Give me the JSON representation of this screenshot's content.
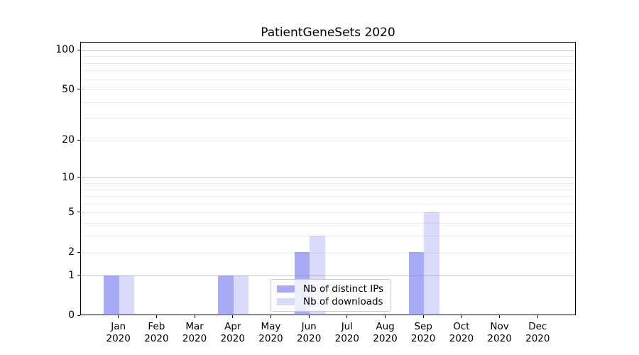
{
  "chart_data": {
    "type": "bar",
    "title": "PatientGeneSets 2020",
    "categories": [
      "Jan",
      "Feb",
      "Mar",
      "Apr",
      "May",
      "Jun",
      "Jul",
      "Aug",
      "Sep",
      "Oct",
      "Nov",
      "Dec"
    ],
    "category_year": "2020",
    "series": [
      {
        "name": "Nb of distinct IPs",
        "color": "rgba(122,127,242,0.66)",
        "values": [
          1,
          0,
          0,
          1,
          0,
          2,
          0,
          0,
          2,
          0,
          0,
          0
        ]
      },
      {
        "name": "Nb of downloads",
        "color": "rgba(122,127,242,0.28)",
        "values": [
          1,
          0,
          0,
          1,
          0,
          3,
          0,
          0,
          5,
          0,
          0,
          0
        ]
      }
    ],
    "xlabel": "",
    "ylabel": "",
    "y_scale": "log10(1+x)",
    "y_max": 115,
    "ylim": [
      0,
      115
    ],
    "y_ticks": [
      0,
      1,
      2,
      5,
      10,
      20,
      50,
      100
    ],
    "y_major_gridlines": [
      1,
      10,
      100
    ],
    "y_minor_gridlines": [
      2,
      3,
      4,
      5,
      6,
      7,
      8,
      9,
      20,
      30,
      40,
      50,
      60,
      70,
      80,
      90
    ],
    "grid": true,
    "legend_position": "lower center"
  },
  "colors": {
    "major_grid": "#c9c9c9",
    "minor_grid": "#ebebeb",
    "axis": "#000000",
    "bar_distinct_ips": "rgba(122,127,242,0.66)",
    "bar_downloads": "rgba(122,127,242,0.28)",
    "legend_border": "#cbcbcb"
  }
}
